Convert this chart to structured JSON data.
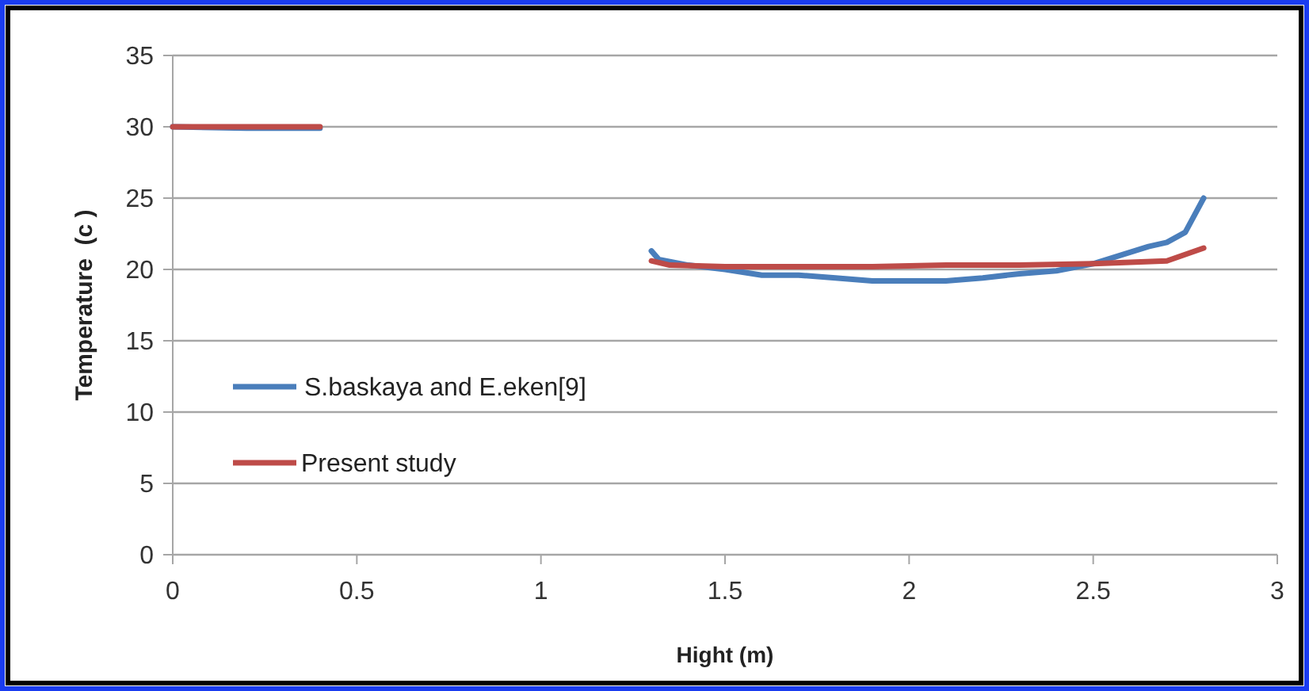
{
  "chart_data": {
    "type": "line",
    "xlabel": "Hight (m)",
    "ylabel": "Temperature  (c )",
    "xlim": [
      0,
      3
    ],
    "xticks": [
      0,
      0.5,
      1,
      1.5,
      2,
      2.5,
      3
    ],
    "ylim": [
      0,
      35
    ],
    "yticks": [
      0,
      5,
      10,
      15,
      20,
      25,
      30,
      35
    ],
    "grid": "y",
    "legend": "left",
    "marker": "none",
    "line_style": "solid",
    "series": [
      {
        "name": "S.baskaya and E.eken[9]",
        "color": "#4a7ebb",
        "x": [
          0,
          0.2,
          0.4,
          0.85,
          1.3,
          1.32,
          1.4,
          1.5,
          1.6,
          1.7,
          1.8,
          1.9,
          2.0,
          2.1,
          2.2,
          2.3,
          2.4,
          2.5,
          2.6,
          2.65,
          2.7,
          2.75,
          2.8
        ],
        "values": [
          30,
          29.9,
          29.9,
          null,
          21.3,
          20.7,
          20.3,
          20.0,
          19.6,
          19.6,
          19.4,
          19.2,
          19.2,
          19.2,
          19.4,
          19.7,
          19.9,
          20.4,
          21.2,
          21.6,
          21.9,
          22.6,
          25.0
        ]
      },
      {
        "name": "Present study",
        "color": "#be4b48",
        "x": [
          0,
          0.2,
          0.4,
          0.85,
          1.3,
          1.35,
          1.5,
          1.7,
          1.9,
          2.1,
          2.3,
          2.5,
          2.6,
          2.7,
          2.8
        ],
        "values": [
          30,
          30,
          30,
          null,
          20.6,
          20.3,
          20.2,
          20.2,
          20.2,
          20.3,
          20.3,
          20.4,
          20.5,
          20.6,
          21.5
        ]
      }
    ]
  }
}
